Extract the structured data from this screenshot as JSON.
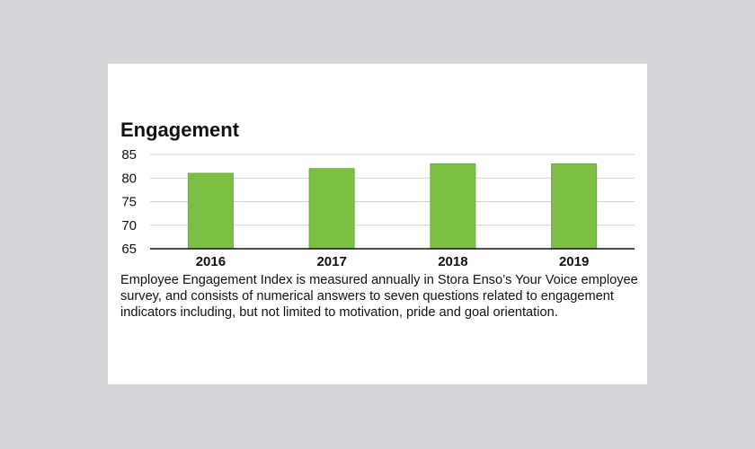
{
  "chart_data": {
    "type": "bar",
    "title": "Engagement",
    "categories": [
      "2016",
      "2017",
      "2018",
      "2019"
    ],
    "values": [
      81,
      82,
      83,
      83
    ],
    "ylim": [
      65,
      85
    ],
    "yticks": [
      65,
      70,
      75,
      80,
      85
    ],
    "xlabel": "",
    "ylabel": "",
    "grid": true,
    "bar_color": "#7cc043",
    "bar_edge_color": "#6aae36"
  },
  "caption": "Employee Engagement Index is measured annually in Stora Enso’s Your Voice employee survey, and consists of numerical answers to seven questions related to engagement indicators including, but not limited to motivation, pride and goal orientation."
}
